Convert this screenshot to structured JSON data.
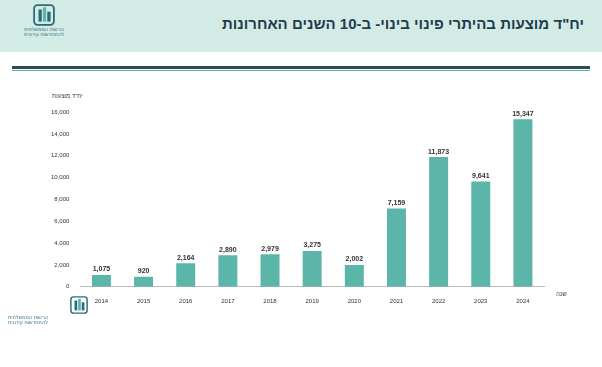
{
  "logo_text": [
    "הרשות הממשלתית",
    "להתחדשות עירונית"
  ],
  "chart_data": {
    "type": "bar",
    "title": "יח\"ד מוצעות בהיתרי פינוי בינוי- ב-10 השנים האחרונות",
    "y_label": "יח\"ד מוצעות",
    "x_label": "שנה",
    "categories": [
      "2014",
      "2015",
      "2016",
      "2017",
      "2018",
      "2019",
      "2020",
      "2021",
      "2022",
      "2023",
      "2024"
    ],
    "values": [
      1075,
      920,
      2164,
      2890,
      2979,
      3275,
      2002,
      7159,
      11873,
      9641,
      15347
    ],
    "value_labels": [
      "1,075",
      "920",
      "2,164",
      "2,890",
      "2,979",
      "3,275",
      "2,002",
      "7,159",
      "11,873",
      "9,641",
      "15,347"
    ],
    "data_labels": true,
    "color": "#5bb5a8",
    "ylim": [
      0,
      16000
    ],
    "yticks": [
      0,
      {
        "value": 2000,
        "label": "2,000"
      },
      {
        "value": 4000,
        "label": "4,000"
      },
      {
        "value": 6000,
        "label": "6,000"
      },
      {
        "value": 8000,
        "label": "8,000"
      },
      {
        "value": 10000,
        "label": "10,000"
      },
      {
        "value": 12000,
        "label": "12,000"
      },
      {
        "value": 14000,
        "label": "14,000"
      },
      {
        "value": 16000,
        "label": "16,000"
      }
    ],
    "grid": false
  }
}
